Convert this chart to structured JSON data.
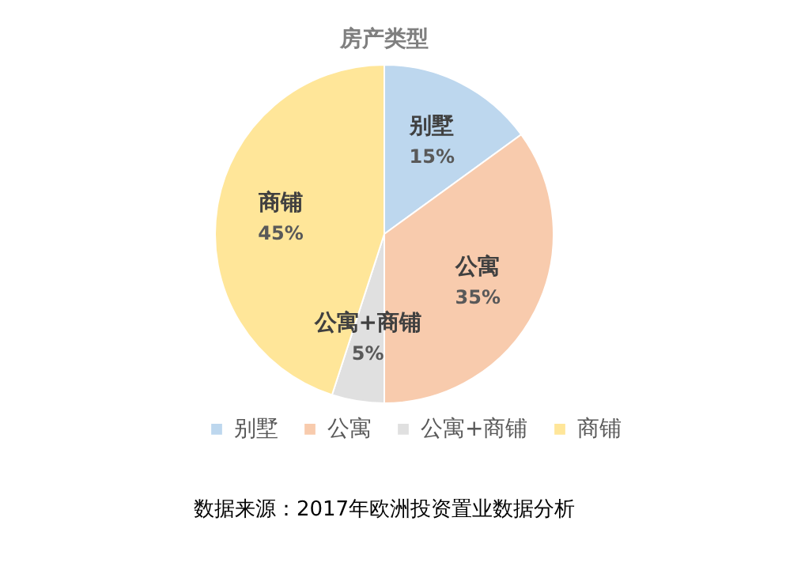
{
  "chart_data": {
    "type": "pie",
    "title": "房产类型",
    "categories": [
      "别墅",
      "公寓",
      "公寓+商铺",
      "商铺"
    ],
    "values": [
      15,
      35,
      5,
      45
    ],
    "value_labels": [
      "15%",
      "35%",
      "5%",
      "45%"
    ],
    "colors": [
      "#bdd7ee",
      "#f8cbad",
      "#e0e0e0",
      "#ffe699"
    ],
    "legend": "bottom",
    "annotations": [
      "数据来源：2017年欧洲投资置业数据分析"
    ]
  }
}
